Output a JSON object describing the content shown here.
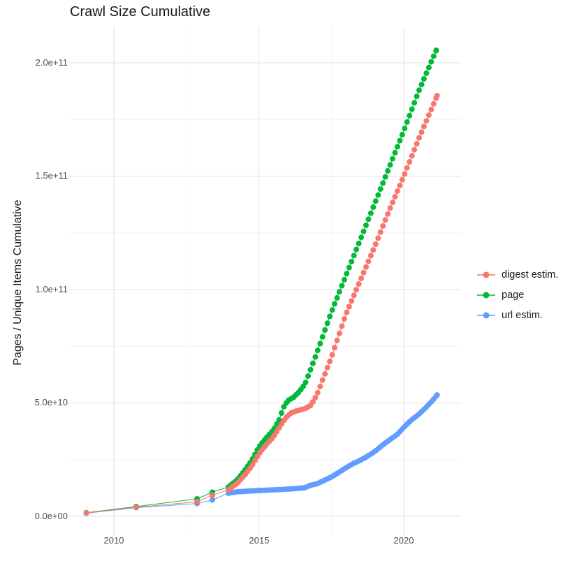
{
  "title": "Crawl Size Cumulative",
  "y_axis": {
    "label": "Pages / Unique Items Cumulative",
    "ticks": [
      "0.0e+00",
      "5.0e+10",
      "1.0e+11",
      "1.5e+11",
      "2.0e+11"
    ]
  },
  "x_axis": {
    "ticks": [
      "2010",
      "2015",
      "2020"
    ]
  },
  "legend": {
    "items": [
      {
        "label": "digest estim.",
        "color": "#F8766D"
      },
      {
        "label": "page",
        "color": "#00BA38"
      },
      {
        "label": "url estim.",
        "color": "#619CFF"
      }
    ]
  },
  "chart_data": {
    "type": "scatter",
    "title": "Crawl Size Cumulative",
    "xlabel": "",
    "ylabel": "Pages / Unique Items Cumulative",
    "x_ticks": [
      2010,
      2015,
      2020
    ],
    "y_ticks_e9": [
      0,
      50,
      100,
      150,
      200
    ],
    "xlim": [
      2008.4,
      2021.8
    ],
    "ylim_e9": [
      -9,
      216
    ],
    "grid": true,
    "legend_position": "right",
    "value_unit": "1e9 pages (billions)",
    "sampling_note": "points are individual crawls, roughly monthly from 2014 onward; values in billions",
    "sample_step_years": 0.0833,
    "series": [
      {
        "name": "digest estim.",
        "color": "#F8766D",
        "sparse_points": [
          [
            2009.05,
            1.5
          ],
          [
            2010.77,
            4.0
          ],
          [
            2012.87,
            6.4
          ],
          [
            2013.4,
            9.3
          ]
        ],
        "anchor_points": [
          [
            2013.95,
            11.7
          ],
          [
            2014.25,
            14.5
          ],
          [
            2014.5,
            18
          ],
          [
            2014.75,
            22
          ],
          [
            2015.0,
            27.5
          ],
          [
            2015.25,
            31.5
          ],
          [
            2015.5,
            35
          ],
          [
            2015.7,
            39
          ],
          [
            2015.9,
            43
          ],
          [
            2016.1,
            45.5
          ],
          [
            2016.3,
            46.5
          ],
          [
            2016.6,
            47.5
          ],
          [
            2016.8,
            49
          ],
          [
            2017.0,
            53.5
          ],
          [
            2017.5,
            70
          ],
          [
            2018.0,
            89
          ],
          [
            2018.5,
            104
          ],
          [
            2019.0,
            119
          ],
          [
            2019.5,
            135
          ],
          [
            2020.0,
            150
          ],
          [
            2020.5,
            166
          ],
          [
            2021.0,
            181
          ],
          [
            2021.15,
            185.5
          ]
        ]
      },
      {
        "name": "page",
        "color": "#00BA38",
        "sparse_points": [
          [
            2009.05,
            1.6
          ],
          [
            2010.77,
            4.3
          ],
          [
            2012.87,
            7.7
          ],
          [
            2013.4,
            10.6
          ]
        ],
        "anchor_points": [
          [
            2013.95,
            12.9
          ],
          [
            2014.25,
            16
          ],
          [
            2014.5,
            20
          ],
          [
            2014.75,
            24.5
          ],
          [
            2015.0,
            30.5
          ],
          [
            2015.25,
            34.5
          ],
          [
            2015.5,
            38
          ],
          [
            2015.7,
            42.5
          ],
          [
            2015.85,
            48
          ],
          [
            2016.0,
            51
          ],
          [
            2016.2,
            52.5
          ],
          [
            2016.4,
            55
          ],
          [
            2016.6,
            58.5
          ],
          [
            2017.0,
            72
          ],
          [
            2017.5,
            90
          ],
          [
            2018.0,
            106
          ],
          [
            2018.5,
            122
          ],
          [
            2019.0,
            138
          ],
          [
            2019.5,
            154
          ],
          [
            2020.0,
            170
          ],
          [
            2020.5,
            187
          ],
          [
            2021.0,
            202
          ],
          [
            2021.12,
            205.5
          ]
        ]
      },
      {
        "name": "url estim.",
        "color": "#619CFF",
        "sparse_points": [
          [
            2009.05,
            1.4
          ],
          [
            2010.77,
            3.8
          ],
          [
            2012.87,
            5.6
          ],
          [
            2013.4,
            7.2
          ]
        ],
        "anchor_points": [
          [
            2013.95,
            10.2
          ],
          [
            2014.25,
            10.8
          ],
          [
            2014.75,
            11.2
          ],
          [
            2015.25,
            11.5
          ],
          [
            2015.75,
            11.8
          ],
          [
            2016.25,
            12.2
          ],
          [
            2016.6,
            12.6
          ],
          [
            2016.75,
            13.6
          ],
          [
            2017.0,
            14.3
          ],
          [
            2017.25,
            15.8
          ],
          [
            2017.5,
            17.3
          ],
          [
            2017.75,
            19.3
          ],
          [
            2018.0,
            21.3
          ],
          [
            2018.25,
            23.2
          ],
          [
            2018.5,
            24.7
          ],
          [
            2018.75,
            26.5
          ],
          [
            2019.0,
            28.6
          ],
          [
            2019.25,
            31.2
          ],
          [
            2019.5,
            33.6
          ],
          [
            2019.75,
            35.8
          ],
          [
            2020.0,
            39.2
          ],
          [
            2020.25,
            42.3
          ],
          [
            2020.5,
            44.8
          ],
          [
            2020.75,
            47.8
          ],
          [
            2021.0,
            51.2
          ],
          [
            2021.15,
            53.5
          ]
        ]
      }
    ]
  }
}
